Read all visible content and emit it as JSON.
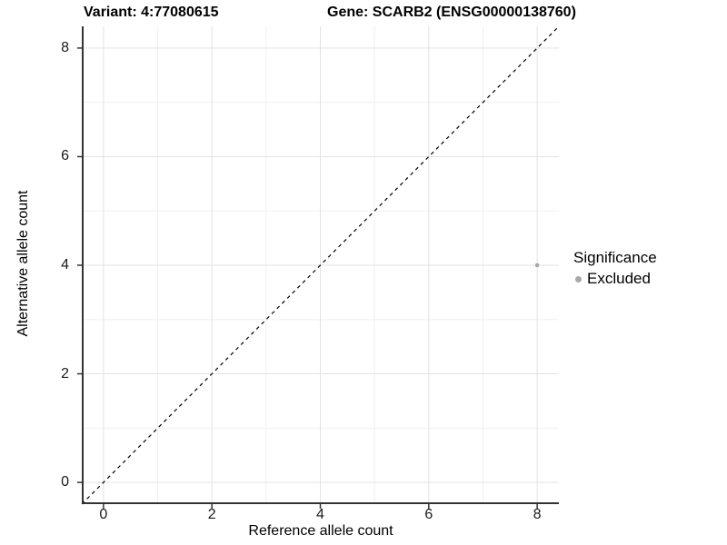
{
  "titles": {
    "variant": "Variant: 4:77080615",
    "gene": "Gene: SCARB2 (ENSG00000138760)"
  },
  "axes": {
    "x": {
      "label": "Reference allele count",
      "tick_values": [
        0,
        2,
        4,
        6,
        8
      ],
      "minor_tick_values": [
        1,
        3,
        5,
        7
      ],
      "lim": [
        -0.4,
        8.4
      ]
    },
    "y": {
      "label": "Alternative allele count",
      "tick_values": [
        0,
        2,
        4,
        6,
        8
      ],
      "minor_tick_values": [
        1,
        3,
        5,
        7
      ],
      "lim": [
        -0.4,
        8.4
      ]
    }
  },
  "legend": {
    "title": "Significance",
    "items": [
      {
        "label": "Excluded",
        "color": "#a8a8a8"
      }
    ]
  },
  "chart_data": {
    "type": "scatter",
    "title": "Variant: 4:77080615 | Gene: SCARB2 (ENSG00000138760)",
    "xlabel": "Reference allele count",
    "ylabel": "Alternative allele count",
    "xlim": [
      -0.4,
      8.4
    ],
    "ylim": [
      -0.4,
      8.4
    ],
    "grid": "major+minor",
    "legend_position": "right",
    "series": [
      {
        "name": "Excluded",
        "color": "#a8a8a8",
        "points": [
          {
            "x": 8,
            "y": 4
          }
        ]
      }
    ],
    "reference_line": {
      "type": "identity y=x",
      "style": "dashed",
      "color": "#000000"
    }
  },
  "colors": {
    "grid_major": "#e3e3e3",
    "grid_minor": "#f0f0f0",
    "axis_line": "#333333",
    "tick": "#333333",
    "point": "#a8a8a8",
    "dashed_line": "#000000",
    "text": "#000000"
  }
}
